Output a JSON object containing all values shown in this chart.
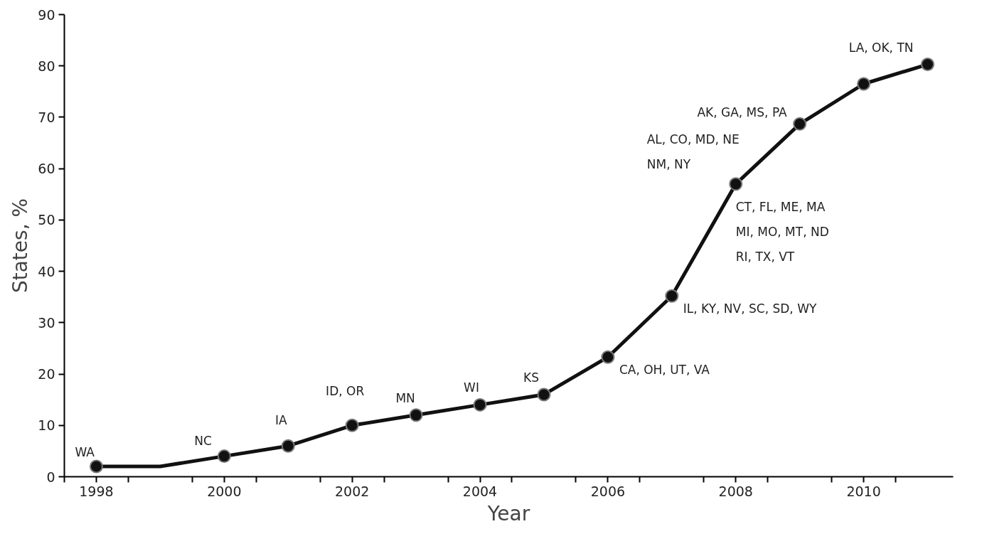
{
  "chart_data": {
    "type": "line",
    "xlabel": "Year",
    "ylabel": "States, %",
    "x": [
      1998,
      1999,
      2000,
      2001,
      2002,
      2003,
      2004,
      2005,
      2006,
      2007,
      2008,
      2009,
      2010,
      2011
    ],
    "series": [
      {
        "color": "#111111",
        "marker": "none",
        "values": [
          2,
          2,
          4,
          6,
          10,
          12,
          14,
          16,
          23.3,
          35.2,
          57,
          68.7,
          76.5,
          80.3
        ]
      },
      {
        "type": "scatter",
        "color": "#111111",
        "marker": "circle",
        "values": [
          2,
          null,
          4,
          6,
          10,
          12,
          14,
          16,
          23.3,
          35.2,
          57,
          68.7,
          76.5,
          80.3
        ]
      }
    ],
    "xlim": [
      1997.5,
      2011.4
    ],
    "xticks": [
      {
        "value": 1997.5,
        "label": null
      },
      1998,
      {
        "value": 1998.5,
        "label": null
      },
      {
        "value": 1999.5,
        "label": null
      },
      2000,
      {
        "value": 2000.5,
        "label": null
      },
      {
        "value": 2001.5,
        "label": null
      },
      2002,
      {
        "value": 2002.5,
        "label": null
      },
      {
        "value": 2003.5,
        "label": null
      },
      2004,
      {
        "value": 2004.5,
        "label": null
      },
      {
        "value": 2005.5,
        "label": null
      },
      2006,
      {
        "value": 2006.5,
        "label": null
      },
      {
        "value": 2007.5,
        "label": null
      },
      2008,
      {
        "value": 2008.5,
        "label": null
      },
      {
        "value": 2009.5,
        "label": null
      },
      2010,
      {
        "value": 2010.5,
        "label": null
      }
    ],
    "ylim": [
      0,
      90
    ],
    "yticks": [
      0,
      10,
      20,
      30,
      40,
      50,
      60,
      70,
      80,
      90
    ],
    "grid": false,
    "line_style": "solid",
    "annotations": [
      {
        "text": "WA",
        "x": 1998,
        "y": 2
      },
      {
        "text": "NC",
        "x": 2000,
        "y": 4
      },
      {
        "text": "IA",
        "x": 2001,
        "y": 6
      },
      {
        "text": "ID, OR",
        "x": 2002,
        "y": 10
      },
      {
        "text": "MN",
        "x": 2003,
        "y": 12
      },
      {
        "text": "WI",
        "x": 2004,
        "y": 14
      },
      {
        "text": "KS",
        "x": 2005,
        "y": 16
      },
      {
        "text": "CA, OH, UT, VA",
        "x": 2006,
        "y": 23.3
      },
      {
        "text": "IL, KY, NV, SC, SD, WY",
        "x": 2007,
        "y": 35.2
      },
      {
        "text": "AL, CO, MD, NE\nNM, NY",
        "x": 2008,
        "y": 57
      },
      {
        "text": "CT, FL, ME, MA\nMI, MO, MT, ND\nRI, TX, VT",
        "x": 2008,
        "y": 57
      },
      {
        "text": "AK, GA, MS, PA",
        "x": 2009,
        "y": 68.7
      },
      {
        "text": "LA, OK, TN",
        "x": 2011,
        "y": 80.3
      }
    ]
  }
}
